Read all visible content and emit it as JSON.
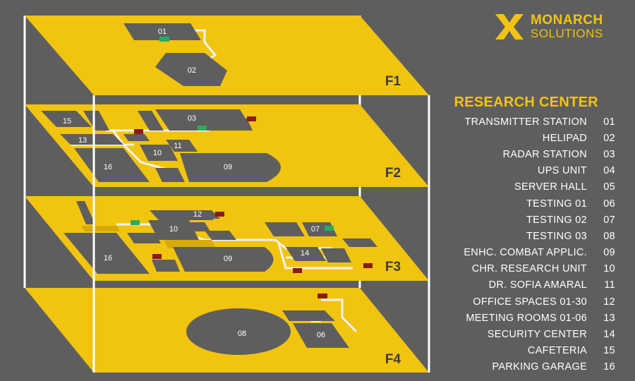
{
  "brand": {
    "name_line1": "MONARCH",
    "name_line2": "SOLUTIONS",
    "logo_icon": "m-chevron-logo-icon",
    "accent_color": "#f1c40f"
  },
  "colors": {
    "background": "#5e5e5e",
    "floor": "#f1c40f",
    "room": "#5e5e5e",
    "door_red": "#8b1a1a",
    "door_green": "#27ae60",
    "corridor": "#f2f2f2"
  },
  "floors": [
    {
      "label": "F1",
      "rooms": [
        {
          "code": "01"
        },
        {
          "code": "02"
        }
      ]
    },
    {
      "label": "F2",
      "rooms": [
        {
          "code": "15"
        },
        {
          "code": "03"
        },
        {
          "code": "13"
        },
        {
          "code": "10"
        },
        {
          "code": "11"
        },
        {
          "code": "16"
        },
        {
          "code": "09"
        }
      ]
    },
    {
      "label": "F3",
      "rooms": [
        {
          "code": "12"
        },
        {
          "code": "10"
        },
        {
          "code": "07"
        },
        {
          "code": "16"
        },
        {
          "code": "09"
        },
        {
          "code": "14"
        }
      ]
    },
    {
      "label": "F4",
      "rooms": [
        {
          "code": "08"
        },
        {
          "code": "06"
        }
      ]
    }
  ],
  "legend": {
    "title": "RESEARCH CENTER",
    "items": [
      {
        "name": "TRANSMITTER STATION",
        "code": "01"
      },
      {
        "name": "HELIPAD",
        "code": "02"
      },
      {
        "name": "RADAR STATION",
        "code": "03"
      },
      {
        "name": "UPS UNIT",
        "code": "04"
      },
      {
        "name": "SERVER HALL",
        "code": "05"
      },
      {
        "name": "TESTING 01",
        "code": "06"
      },
      {
        "name": "TESTING 02",
        "code": "07"
      },
      {
        "name": "TESTING 03",
        "code": "08"
      },
      {
        "name": "ENHC. COMBAT APPLIC.",
        "code": "09"
      },
      {
        "name": "CHR. RESEARCH UNIT",
        "code": "10"
      },
      {
        "name": "DR. SOFIA AMARAL",
        "code": "11"
      },
      {
        "name": "OFFICE SPACES 01-30",
        "code": "12"
      },
      {
        "name": "MEETING ROOMS 01-06",
        "code": "13"
      },
      {
        "name": "SECURITY CENTER",
        "code": "14"
      },
      {
        "name": "CAFETERIA",
        "code": "15"
      },
      {
        "name": "PARKING GARAGE",
        "code": "16"
      }
    ]
  }
}
